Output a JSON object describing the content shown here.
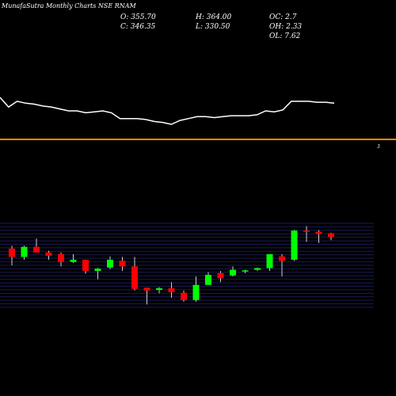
{
  "header": {
    "title": "MunafaSutra Monthly Charts NSE RNAM",
    "open": "O: 355.70",
    "close": "C: 346.35",
    "high": "H: 364.00",
    "low": "L: 330.50",
    "oc": "OC: 2.7",
    "oh": "OH: 2.33",
    "ol": "OL: 7.62"
  },
  "colors": {
    "background": "#000000",
    "up": "#00ff00",
    "down": "#ff0000",
    "line": "#ffffff",
    "divider": "#ff8c00",
    "grid": "#1a1a55"
  },
  "divider_label": "3",
  "chart_data": [
    {
      "type": "line",
      "series": [
        {
          "values": [
            64,
            54,
            60,
            58,
            57,
            55,
            54,
            52,
            50,
            50,
            48,
            49,
            50,
            48,
            42,
            42,
            42,
            41,
            39,
            38,
            36,
            40,
            42,
            44,
            44,
            43,
            44,
            45,
            45,
            45,
            46,
            50,
            49,
            51,
            60,
            60,
            60,
            59,
            59,
            58
          ]
        }
      ]
    },
    {
      "type": "candlestick",
      "y_ticks": [
        "",
        "",
        "",
        "",
        "",
        "",
        "",
        "",
        "",
        "",
        "",
        "",
        "",
        "",
        "",
        "",
        "",
        "",
        "",
        "",
        "",
        "",
        "",
        "",
        ""
      ],
      "candles": [
        {
          "open": 340,
          "high": 345,
          "low": 310,
          "close": 325
        },
        {
          "open": 325,
          "high": 345,
          "low": 320,
          "close": 343
        },
        {
          "open": 343,
          "high": 358,
          "low": 333,
          "close": 333
        },
        {
          "open": 333,
          "high": 336,
          "low": 320,
          "close": 327
        },
        {
          "open": 330,
          "high": 333,
          "low": 308,
          "close": 316
        },
        {
          "open": 316,
          "high": 330,
          "low": 314,
          "close": 320
        },
        {
          "open": 320,
          "high": 320,
          "low": 295,
          "close": 300
        },
        {
          "open": 300,
          "high": 305,
          "low": 285,
          "close": 304
        },
        {
          "open": 306,
          "high": 326,
          "low": 303,
          "close": 320
        },
        {
          "open": 318,
          "high": 325,
          "low": 300,
          "close": 308
        },
        {
          "open": 308,
          "high": 325,
          "low": 265,
          "close": 268
        },
        {
          "open": 270,
          "high": 270,
          "low": 240,
          "close": 265
        },
        {
          "open": 266,
          "high": 271,
          "low": 260,
          "close": 269
        },
        {
          "open": 269,
          "high": 280,
          "low": 252,
          "close": 262
        },
        {
          "open": 261,
          "high": 265,
          "low": 245,
          "close": 248
        },
        {
          "open": 248,
          "high": 290,
          "low": 245,
          "close": 275
        },
        {
          "open": 275,
          "high": 298,
          "low": 275,
          "close": 293
        },
        {
          "open": 296,
          "high": 300,
          "low": 280,
          "close": 287
        },
        {
          "open": 292,
          "high": 308,
          "low": 290,
          "close": 302
        },
        {
          "open": 299,
          "high": 302,
          "low": 296,
          "close": 301
        },
        {
          "open": 302,
          "high": 306,
          "low": 300,
          "close": 305
        },
        {
          "open": 305,
          "high": 330,
          "low": 300,
          "close": 330
        },
        {
          "open": 326,
          "high": 330,
          "low": 290,
          "close": 318
        },
        {
          "open": 320,
          "high": 373,
          "low": 318,
          "close": 372
        },
        {
          "open": 372,
          "high": 380,
          "low": 352,
          "close": 370
        },
        {
          "open": 370,
          "high": 373,
          "low": 350,
          "close": 366
        },
        {
          "open": 367,
          "high": 368,
          "low": 355,
          "close": 361
        }
      ]
    }
  ]
}
